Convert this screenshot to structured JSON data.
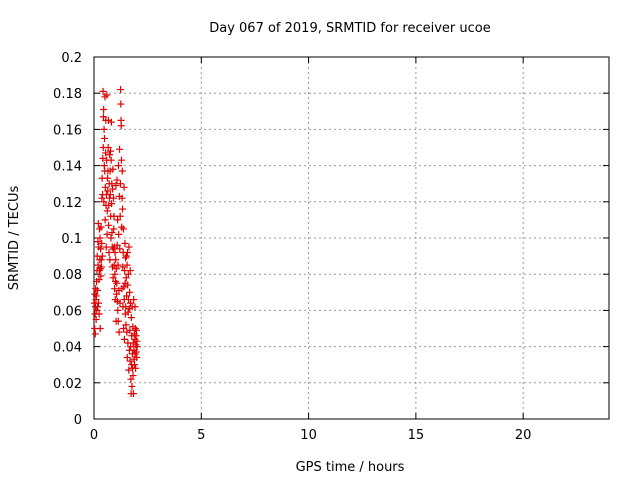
{
  "chart_data": {
    "type": "scatter",
    "title": "Day 067 of 2019, SRMTID for receiver ucoe",
    "xlabel": "GPS time / hours",
    "ylabel": "SRMTID / TECUs",
    "xlim": [
      0,
      24
    ],
    "ylim": [
      0,
      0.2
    ],
    "xticks": [
      "0",
      "5",
      "10",
      "15",
      "20"
    ],
    "yticks": [
      "0",
      "0.02",
      "0.04",
      "0.06",
      "0.08",
      "0.1",
      "0.12",
      "0.14",
      "0.16",
      "0.18",
      "0.2"
    ],
    "grid": true,
    "marker": "plus",
    "series": [
      {
        "color": "#e00000",
        "points": [
          [
            0.02,
            0.064
          ],
          [
            0.03,
            0.05
          ],
          [
            0.04,
            0.069
          ],
          [
            0.05,
            0.058
          ],
          [
            0.06,
            0.047
          ],
          [
            0.07,
            0.062
          ],
          [
            0.08,
            0.072
          ],
          [
            0.09,
            0.066
          ],
          [
            0.1,
            0.055
          ],
          [
            0.11,
            0.068
          ],
          [
            0.12,
            0.076
          ],
          [
            0.13,
            0.06
          ],
          [
            0.14,
            0.082
          ],
          [
            0.15,
            0.09
          ],
          [
            0.16,
            0.071
          ],
          [
            0.17,
            0.062
          ],
          [
            0.18,
            0.098
          ],
          [
            0.19,
            0.085
          ],
          [
            0.2,
            0.108
          ],
          [
            0.21,
            0.064
          ],
          [
            0.22,
            0.095
          ],
          [
            0.23,
            0.077
          ],
          [
            0.24,
            0.058
          ],
          [
            0.25,
            0.082
          ],
          [
            0.26,
            0.105
          ],
          [
            0.27,
            0.088
          ],
          [
            0.28,
            0.1
          ],
          [
            0.29,
            0.05
          ],
          [
            0.3,
            0.083
          ],
          [
            0.31,
            0.094
          ],
          [
            0.32,
            0.079
          ],
          [
            0.33,
            0.106
          ],
          [
            0.34,
            0.088
          ],
          [
            0.35,
            0.084
          ],
          [
            0.36,
            0.097
          ],
          [
            0.37,
            0.122
          ],
          [
            0.38,
            0.133
          ],
          [
            0.39,
            0.09
          ],
          [
            0.4,
            0.124
          ],
          [
            0.41,
            0.144
          ],
          [
            0.42,
            0.181
          ],
          [
            0.43,
            0.15
          ],
          [
            0.44,
            0.167
          ],
          [
            0.45,
            0.171
          ],
          [
            0.46,
            0.12
          ],
          [
            0.47,
            0.16
          ],
          [
            0.48,
            0.14
          ],
          [
            0.49,
            0.155
          ],
          [
            0.5,
            0.137
          ],
          [
            0.51,
            0.178
          ],
          [
            0.52,
            0.11
          ],
          [
            0.53,
            0.128
          ],
          [
            0.54,
            0.147
          ],
          [
            0.55,
            0.165
          ],
          [
            0.56,
            0.118
          ],
          [
            0.57,
            0.095
          ],
          [
            0.58,
            0.124
          ],
          [
            0.59,
            0.143
          ],
          [
            0.6,
            0.179
          ],
          [
            0.61,
            0.102
          ],
          [
            0.62,
            0.115
          ],
          [
            0.63,
            0.133
          ],
          [
            0.64,
            0.126
          ],
          [
            0.65,
            0.137
          ],
          [
            0.66,
            0.15
          ],
          [
            0.67,
            0.165
          ],
          [
            0.68,
            0.107
          ],
          [
            0.69,
            0.118
          ],
          [
            0.7,
            0.092
          ],
          [
            0.71,
            0.13
          ],
          [
            0.72,
            0.122
          ],
          [
            0.73,
            0.146
          ],
          [
            0.74,
            0.088
          ],
          [
            0.75,
            0.137
          ],
          [
            0.76,
            0.124
          ],
          [
            0.77,
            0.148
          ],
          [
            0.78,
            0.112
          ],
          [
            0.79,
            0.1
          ],
          [
            0.8,
            0.143
          ],
          [
            0.81,
            0.164
          ],
          [
            0.82,
            0.119
          ],
          [
            0.83,
            0.13
          ],
          [
            0.84,
            0.103
          ],
          [
            0.85,
            0.095
          ],
          [
            0.86,
            0.084
          ],
          [
            0.87,
            0.127
          ],
          [
            0.88,
            0.138
          ],
          [
            0.89,
            0.078
          ],
          [
            0.9,
            0.094
          ],
          [
            0.91,
            0.122
          ],
          [
            0.92,
            0.105
          ],
          [
            0.93,
            0.112
          ],
          [
            0.94,
            0.085
          ],
          [
            0.95,
            0.095
          ],
          [
            0.96,
            0.072
          ],
          [
            0.97,
            0.08
          ],
          [
            0.98,
            0.092
          ],
          [
            0.99,
            0.066
          ],
          [
            1.0,
            0.076
          ],
          [
            1.01,
            0.088
          ],
          [
            1.02,
            0.129
          ],
          [
            1.03,
            0.054
          ],
          [
            1.04,
            0.083
          ],
          [
            1.05,
            0.069
          ],
          [
            1.06,
            0.075
          ],
          [
            1.07,
            0.132
          ],
          [
            1.08,
            0.096
          ],
          [
            1.09,
            0.065
          ],
          [
            1.1,
            0.11
          ],
          [
            1.11,
            0.06
          ],
          [
            1.12,
            0.085
          ],
          [
            1.13,
            0.054
          ],
          [
            1.14,
            0.14
          ],
          [
            1.15,
            0.102
          ],
          [
            1.16,
            0.071
          ],
          [
            1.17,
            0.048
          ],
          [
            1.18,
            0.123
          ],
          [
            1.19,
            0.149
          ],
          [
            1.2,
            0.094
          ],
          [
            1.21,
            0.064
          ],
          [
            1.22,
            0.112
          ],
          [
            1.23,
            0.13
          ],
          [
            1.24,
            0.182
          ],
          [
            1.25,
            0.174
          ],
          [
            1.26,
            0.165
          ],
          [
            1.27,
            0.162
          ],
          [
            1.28,
            0.143
          ],
          [
            1.29,
            0.106
          ],
          [
            1.3,
            0.072
          ],
          [
            1.31,
            0.122
          ],
          [
            1.32,
            0.137
          ],
          [
            1.33,
            0.116
          ],
          [
            1.34,
            0.084
          ],
          [
            1.35,
            0.062
          ],
          [
            1.36,
            0.092
          ],
          [
            1.37,
            0.105
          ],
          [
            1.38,
            0.05
          ],
          [
            1.39,
            0.073
          ],
          [
            1.4,
            0.128
          ],
          [
            1.41,
            0.066
          ],
          [
            1.42,
            0.044
          ],
          [
            1.43,
            0.082
          ],
          [
            1.44,
            0.097
          ],
          [
            1.45,
            0.075
          ],
          [
            1.46,
            0.058
          ],
          [
            1.47,
            0.089
          ],
          [
            1.48,
            0.062
          ],
          [
            1.49,
            0.052
          ],
          [
            1.5,
            0.078
          ],
          [
            1.51,
            0.09
          ],
          [
            1.52,
            0.068
          ],
          [
            1.53,
            0.048
          ],
          [
            1.54,
            0.085
          ],
          [
            1.55,
            0.034
          ],
          [
            1.56,
            0.092
          ],
          [
            1.57,
            0.074
          ],
          [
            1.58,
            0.042
          ],
          [
            1.59,
            0.059
          ],
          [
            1.6,
            0.08
          ],
          [
            1.61,
            0.066
          ],
          [
            1.62,
            0.027
          ],
          [
            1.63,
            0.095
          ],
          [
            1.64,
            0.061
          ],
          [
            1.65,
            0.038
          ],
          [
            1.66,
            0.07
          ],
          [
            1.67,
            0.049
          ],
          [
            1.68,
            0.032
          ],
          [
            1.69,
            0.082
          ],
          [
            1.7,
            0.064
          ],
          [
            1.71,
            0.04
          ],
          [
            1.72,
            0.022
          ],
          [
            1.73,
            0.014
          ],
          [
            1.74,
            0.056
          ],
          [
            1.75,
            0.03
          ],
          [
            1.76,
            0.046
          ],
          [
            1.77,
            0.018
          ],
          [
            1.78,
            0.062
          ],
          [
            1.79,
            0.036
          ],
          [
            1.8,
            0.028
          ],
          [
            1.81,
            0.051
          ],
          [
            1.82,
            0.024
          ],
          [
            1.83,
            0.042
          ],
          [
            1.84,
            0.014
          ],
          [
            1.85,
            0.066
          ],
          [
            1.86,
            0.038
          ],
          [
            1.87,
            0.033
          ],
          [
            1.88,
            0.047
          ],
          [
            1.89,
            0.03
          ],
          [
            1.9,
            0.044
          ],
          [
            1.91,
            0.062
          ],
          [
            1.92,
            0.036
          ],
          [
            1.93,
            0.05
          ],
          [
            1.94,
            0.028
          ],
          [
            1.95,
            0.041
          ],
          [
            1.96,
            0.046
          ],
          [
            1.97,
            0.037
          ],
          [
            1.98,
            0.049
          ],
          [
            1.99,
            0.034
          ],
          [
            2.0,
            0.043
          ],
          [
            2.01,
            0.04
          ]
        ]
      }
    ]
  }
}
